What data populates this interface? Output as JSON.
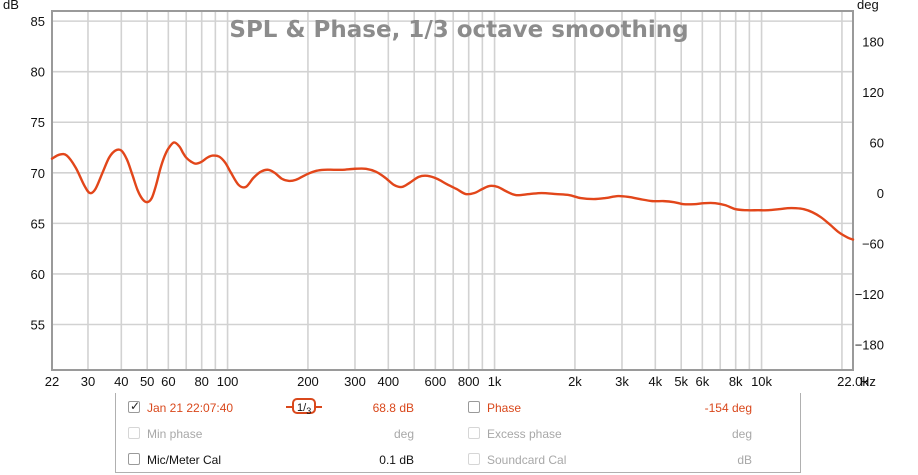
{
  "chart_data": {
    "type": "line",
    "title": "SPL & Phase, 1/3 octave smoothing",
    "y_unit_left": "dB",
    "y_unit_right": "deg",
    "x_unit": "Hz",
    "x_scale": "log",
    "xlim": [
      22,
      22000
    ],
    "ylim": [
      50.5,
      86
    ],
    "ylim_right": [
      -210,
      216
    ],
    "grid": true,
    "x_ticks": [
      {
        "value": 22,
        "label": "22"
      },
      {
        "value": 30,
        "label": "30"
      },
      {
        "value": 40,
        "label": "40"
      },
      {
        "value": 50,
        "label": "50"
      },
      {
        "value": 60,
        "label": "60"
      },
      {
        "value": 80,
        "label": "80"
      },
      {
        "value": 100,
        "label": "100"
      },
      {
        "value": 200,
        "label": "200"
      },
      {
        "value": 300,
        "label": "300"
      },
      {
        "value": 400,
        "label": "400"
      },
      {
        "value": 600,
        "label": "600"
      },
      {
        "value": 800,
        "label": "800"
      },
      {
        "value": 1000,
        "label": "1k"
      },
      {
        "value": 2000,
        "label": "2k"
      },
      {
        "value": 3000,
        "label": "3k"
      },
      {
        "value": 4000,
        "label": "4k"
      },
      {
        "value": 5000,
        "label": "5k"
      },
      {
        "value": 6000,
        "label": "6k"
      },
      {
        "value": 8000,
        "label": "8k"
      },
      {
        "value": 10000,
        "label": "10k"
      },
      {
        "value": 22000,
        "label": "22.0k"
      }
    ],
    "y_ticks_left": [
      85,
      80,
      75,
      70,
      65,
      60,
      55
    ],
    "y_ticks_right": [
      180,
      120,
      60,
      0,
      -60,
      -120,
      -180
    ],
    "series": [
      {
        "name": "Jan 21 22:07:40",
        "color": "#e2461a",
        "x": [
          22,
          23.5,
          25,
          27,
          29,
          30.5,
          32,
          34,
          36,
          38,
          40,
          42,
          44,
          46,
          48,
          50,
          52,
          54,
          56,
          58,
          60,
          63,
          66,
          68,
          70,
          73,
          76,
          80,
          84,
          88,
          93,
          98,
          103,
          110,
          117,
          125,
          133,
          142,
          150,
          160,
          170,
          180,
          190,
          200,
          215,
          230,
          250,
          270,
          300,
          330,
          360,
          390,
          420,
          450,
          480,
          520,
          560,
          610,
          660,
          720,
          780,
          840,
          900,
          960,
          1030,
          1100,
          1200,
          1350,
          1500,
          1700,
          1900,
          2100,
          2350,
          2600,
          2900,
          3200,
          3500,
          3900,
          4300,
          4700,
          5100,
          5600,
          6100,
          6700,
          7300,
          8000,
          8800,
          9700,
          10600,
          11600,
          12500,
          13400,
          14400,
          15500,
          16700,
          18000,
          19500,
          21000,
          22000
        ],
        "values": [
          71.4,
          71.8,
          71.7,
          70.5,
          68.8,
          68.0,
          68.4,
          70.0,
          71.5,
          72.2,
          72.2,
          71.3,
          69.8,
          68.3,
          67.4,
          67.1,
          67.5,
          68.8,
          70.4,
          71.6,
          72.4,
          73.0,
          72.6,
          72.0,
          71.5,
          71.1,
          70.9,
          71.1,
          71.5,
          71.7,
          71.6,
          71.0,
          70.0,
          68.8,
          68.6,
          69.5,
          70.1,
          70.3,
          70.0,
          69.4,
          69.2,
          69.3,
          69.6,
          69.9,
          70.2,
          70.3,
          70.3,
          70.3,
          70.4,
          70.4,
          70.1,
          69.5,
          68.8,
          68.6,
          69.0,
          69.6,
          69.7,
          69.4,
          68.9,
          68.4,
          67.9,
          68.0,
          68.4,
          68.7,
          68.6,
          68.2,
          67.8,
          67.9,
          68.0,
          67.9,
          67.8,
          67.5,
          67.4,
          67.5,
          67.7,
          67.6,
          67.4,
          67.2,
          67.2,
          67.1,
          66.9,
          66.9,
          67.0,
          67.0,
          66.8,
          66.4,
          66.3,
          66.3,
          66.3,
          66.4,
          66.5,
          66.5,
          66.4,
          66.1,
          65.6,
          64.9,
          64.1,
          63.6,
          63.4
        ]
      }
    ]
  },
  "legend_panel": {
    "row1": {
      "checkbox_checked": true,
      "measurement_label": "Jan 21 22:07:40",
      "smoothing_numerator": "1",
      "smoothing_denominator": "3",
      "spl_value": "68.8 dB",
      "phase_label": "Phase",
      "phase_checked": false,
      "phase_value": "-154 deg"
    },
    "row2": {
      "min_phase_label": "Min phase",
      "min_phase_value": "deg",
      "excess_phase_label": "Excess phase",
      "excess_phase_value": "deg"
    },
    "row3": {
      "mic_cal_label": "Mic/Meter Cal",
      "mic_cal_value": "0.1 dB",
      "soundcard_cal_label": "Soundcard Cal",
      "soundcard_cal_value": "dB"
    }
  },
  "colors": {
    "trace": "#e2461a",
    "accent_text": "#d9481c",
    "grid": "#cfcfcf",
    "plot_border": "#9a9a9a",
    "title": "#8c8c8c"
  }
}
